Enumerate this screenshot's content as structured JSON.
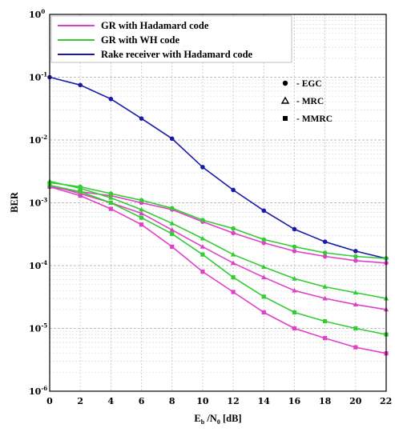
{
  "chart_data": {
    "type": "line",
    "title": "",
    "xlabel": {
      "main": "E",
      "sub": "b",
      "mid": " /N",
      "sub2": "0",
      "unit": "   [dB]"
    },
    "ylabel": "BER",
    "yscale": "log",
    "xlim": [
      0,
      22
    ],
    "ylim": [
      1e-06,
      1
    ],
    "x_ticks": [
      "0",
      "2",
      "4",
      "6",
      "8",
      "10",
      "12",
      "14",
      "16",
      "18",
      "20",
      "22"
    ],
    "y_ticks": [
      {
        "base": "10",
        "exp": "0"
      },
      {
        "base": "10",
        "exp": "-1"
      },
      {
        "base": "10",
        "exp": "-2"
      },
      {
        "base": "10",
        "exp": "-3"
      },
      {
        "base": "10",
        "exp": "-4"
      },
      {
        "base": "10",
        "exp": "-5"
      },
      {
        "base": "10",
        "exp": "-6"
      }
    ],
    "grid": true,
    "legend": {
      "position": "top-left",
      "entries": [
        {
          "label": "GR with Hadamard code",
          "color": "#e040c8"
        },
        {
          "label": "GR with WH code",
          "color": "#33cc33"
        },
        {
          "label": "Rake receiver with Hadamard code",
          "color": "#1a1aa8"
        }
      ]
    },
    "marker_legend": {
      "position": "top-right",
      "entries": [
        {
          "symbol": "circle",
          "label": "- EGC"
        },
        {
          "symbol": "triangle",
          "label": "- MRC"
        },
        {
          "symbol": "square",
          "label": "- MMRC"
        }
      ]
    },
    "x": [
      0,
      2,
      4,
      6,
      8,
      10,
      12,
      14,
      16,
      18,
      20,
      22
    ],
    "series": [
      {
        "color": "#1a1aa8",
        "marker": "circle",
        "values": [
          0.1,
          0.075,
          0.045,
          0.022,
          0.0105,
          0.0037,
          0.0016,
          0.00075,
          0.00038,
          0.00024,
          0.00017,
          0.00013
        ]
      },
      {
        "color": "#e040c8",
        "marker": "circle",
        "values": [
          0.0018,
          0.0015,
          0.0013,
          0.001,
          0.00078,
          0.0005,
          0.00033,
          0.00023,
          0.00017,
          0.00014,
          0.00012,
          0.00011
        ]
      },
      {
        "color": "#33cc33",
        "marker": "circle",
        "values": [
          0.0021,
          0.0018,
          0.0014,
          0.0011,
          0.00082,
          0.00053,
          0.00039,
          0.00026,
          0.0002,
          0.00016,
          0.00014,
          0.00013
        ]
      },
      {
        "color": "#e040c8",
        "marker": "triangle",
        "values": [
          0.0019,
          0.0014,
          0.001,
          0.00068,
          0.00037,
          0.0002,
          0.00011,
          6.5e-05,
          4e-05,
          3e-05,
          2.4e-05,
          2e-05
        ]
      },
      {
        "color": "#33cc33",
        "marker": "triangle",
        "values": [
          0.0022,
          0.0017,
          0.0012,
          0.00078,
          0.00047,
          0.00027,
          0.00015,
          9.5e-05,
          6.2e-05,
          4.6e-05,
          3.7e-05,
          3e-05
        ]
      },
      {
        "color": "#e040c8",
        "marker": "square",
        "values": [
          0.0018,
          0.0013,
          0.0008,
          0.00045,
          0.0002,
          8e-05,
          3.8e-05,
          1.8e-05,
          1e-05,
          7e-06,
          5e-06,
          4e-06
        ]
      },
      {
        "color": "#33cc33",
        "marker": "square",
        "values": [
          0.0019,
          0.0015,
          0.001,
          0.00058,
          0.00032,
          0.00015,
          6.5e-05,
          3.2e-05,
          1.8e-05,
          1.3e-05,
          1e-05,
          8e-06
        ]
      }
    ]
  }
}
